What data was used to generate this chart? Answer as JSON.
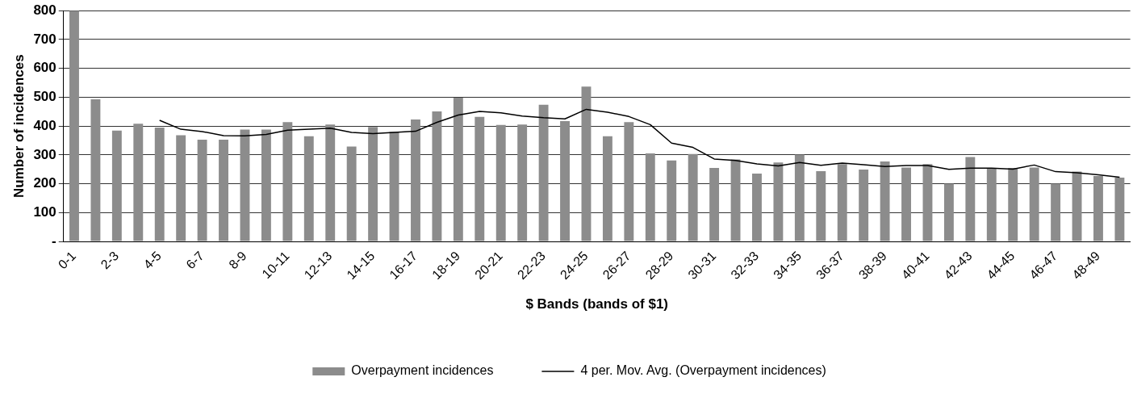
{
  "chart_data": {
    "type": "bar",
    "xlabel": "$ Bands (bands of $1)",
    "ylabel": "Number of incidences",
    "categories": [
      "0-1",
      null,
      "2-3",
      null,
      "4-5",
      null,
      "6-7",
      null,
      "8-9",
      null,
      "10-11",
      null,
      "12-13",
      null,
      "14-15",
      null,
      "16-17",
      null,
      "18-19",
      null,
      "20-21",
      null,
      "22-23",
      null,
      "24-25",
      null,
      "26-27",
      null,
      "28-29",
      null,
      "30-31",
      null,
      "32-33",
      null,
      "34-35",
      null,
      "36-37",
      null,
      "38-39",
      null,
      "40-41",
      null,
      "42-43",
      null,
      "44-45",
      null,
      "46-47",
      null,
      "48-49",
      null
    ],
    "series": [
      {
        "name": "Overpayment incidences",
        "color": "#8c8c8c",
        "values": [
          800,
          493,
          384,
          408,
          395,
          368,
          353,
          353,
          388,
          388,
          414,
          365,
          405,
          329,
          397,
          380,
          423,
          451,
          498,
          432,
          404,
          405,
          474,
          417,
          537,
          365,
          414,
          305,
          281,
          303,
          255,
          284,
          235,
          274,
          301,
          244,
          268,
          249,
          277,
          256,
          268,
          200,
          293,
          255,
          255,
          256,
          200,
          242,
          227,
          221
        ]
      },
      {
        "name": "4 per. Mov. Avg. (Overpayment incidences)",
        "type": "line",
        "color": "#000000",
        "values": [
          null,
          null,
          null,
          null,
          420,
          389,
          381,
          367,
          366,
          371,
          386,
          389,
          393,
          378,
          374,
          378,
          382,
          413,
          438,
          451,
          446,
          435,
          429,
          425,
          458,
          448,
          433,
          405,
          341,
          326,
          286,
          281,
          269,
          262,
          274,
          264,
          272,
          266,
          260,
          263,
          263,
          250,
          254,
          254,
          251,
          265,
          242,
          238,
          231,
          223
        ]
      }
    ],
    "ylim": [
      0,
      800
    ],
    "yticks": [
      {
        "value": 0,
        "label": "-"
      },
      100,
      200,
      300,
      400,
      500,
      600,
      700,
      800
    ],
    "grid": "y",
    "legend": "bottom",
    "marker": "none",
    "line_style": "solid"
  }
}
